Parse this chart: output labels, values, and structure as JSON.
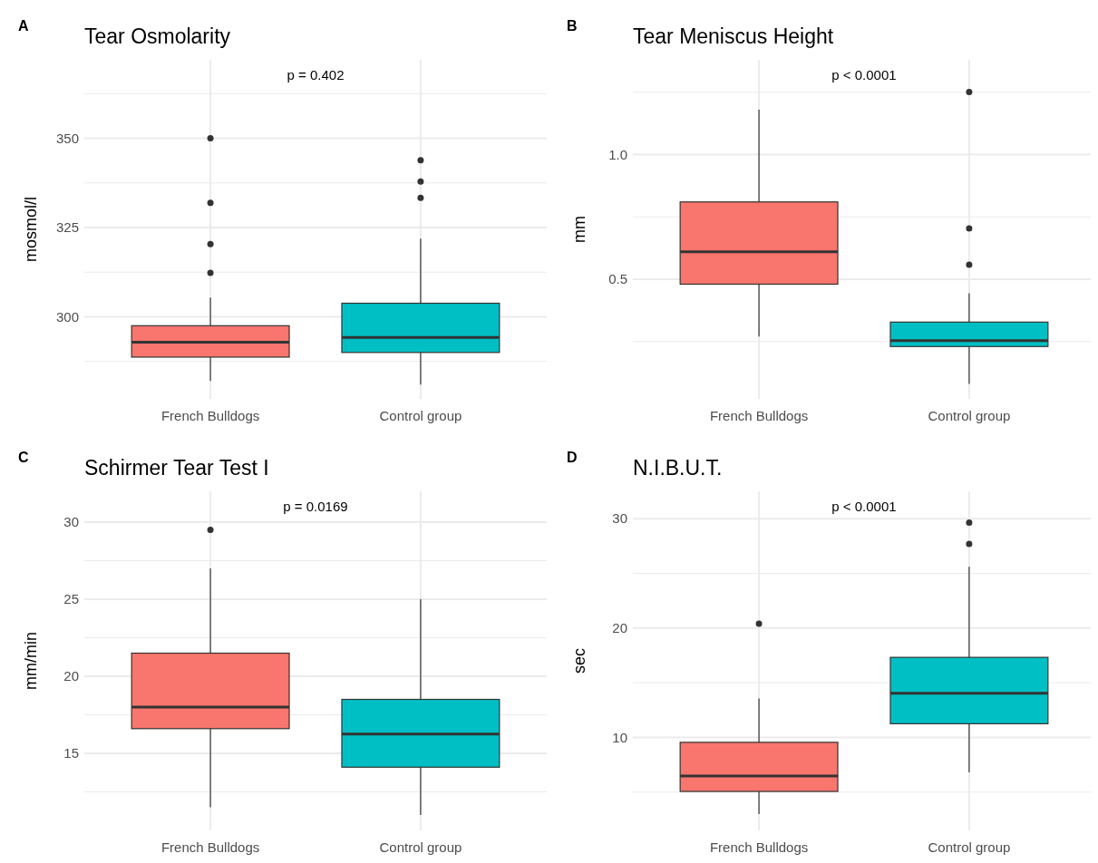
{
  "chart_data": [
    {
      "type": "box",
      "title": "Tear Osmolarity",
      "ylabel": "mosmol/l",
      "annotations": [
        "A",
        "p = 0.402"
      ],
      "categories": [
        "French Bulldogs",
        "Control group"
      ],
      "colors": [
        "#f8766d",
        "#00bfc4"
      ],
      "grid": true,
      "ylim": [
        277,
        372
      ],
      "yticks": [
        {
          "value": 287.5,
          "label": null
        },
        300,
        {
          "value": 312.5,
          "label": null
        },
        325,
        {
          "value": 337.5,
          "label": null
        },
        350,
        {
          "value": 362.5,
          "label": null
        }
      ],
      "boxes": [
        {
          "low": 282.0,
          "q1": 288.7,
          "median": 292.9,
          "q3": 297.5,
          "high": 305.4,
          "outliers": [
            312.3,
            320.4,
            331.9,
            350.0
          ]
        },
        {
          "low": 281.0,
          "q1": 290.0,
          "median": 294.2,
          "q3": 303.8,
          "high": 321.9,
          "outliers": [
            333.3,
            337.9,
            343.9
          ]
        }
      ]
    },
    {
      "type": "box",
      "title": "Tear Meniscus Height",
      "ylabel": "mm",
      "annotations": [
        "B",
        "p < 0.0001"
      ],
      "categories": [
        "French Bulldogs",
        "Control group"
      ],
      "colors": [
        "#f8766d",
        "#00bfc4"
      ],
      "grid": true,
      "ylim": [
        0.02,
        1.38
      ],
      "yticks": [
        {
          "value": 0.25,
          "label": null
        },
        {
          "value": 0.5,
          "label": "0.5"
        },
        {
          "value": 0.75,
          "label": null
        },
        {
          "value": 1.0,
          "label": "1.0"
        },
        {
          "value": 1.25,
          "label": null
        }
      ],
      "boxes": [
        {
          "low": 0.27,
          "q1": 0.48,
          "median": 0.61,
          "q3": 0.81,
          "high": 1.18
        },
        {
          "low": 0.08,
          "q1": 0.23,
          "median": 0.254,
          "q3": 0.328,
          "high": 0.444,
          "outliers": [
            0.558,
            0.704,
            1.251
          ]
        }
      ]
    },
    {
      "type": "box",
      "title": "Schirmer Tear Test I",
      "ylabel": "mm/min",
      "annotations": [
        "C",
        "p = 0.0169"
      ],
      "categories": [
        "French Bulldogs",
        "Control group"
      ],
      "colors": [
        "#f8766d",
        "#00bfc4"
      ],
      "grid": true,
      "ylim": [
        10,
        32
      ],
      "yticks": [
        {
          "value": 12.5,
          "label": null
        },
        15,
        {
          "value": 17.5,
          "label": null
        },
        20,
        {
          "value": 22.5,
          "label": null
        },
        25,
        {
          "value": 27.5,
          "label": null
        },
        30
      ],
      "boxes": [
        {
          "low": 11.5,
          "q1": 16.6,
          "median": 18.0,
          "q3": 21.5,
          "high": 27.0,
          "outliers": [
            29.5
          ]
        },
        {
          "low": 11.0,
          "q1": 14.1,
          "median": 16.25,
          "q3": 18.5,
          "high": 25.0
        }
      ]
    },
    {
      "type": "box",
      "title": "N.I.B.U.T.",
      "ylabel": "sec",
      "annotations": [
        "D",
        "p < 0.0001"
      ],
      "categories": [
        "French Bulldogs",
        "Control group"
      ],
      "colors": [
        "#f8766d",
        "#00bfc4"
      ],
      "grid": true,
      "ylim": [
        1.5,
        32.5
      ],
      "yticks": [
        {
          "value": 5,
          "label": null
        },
        10,
        {
          "value": 15,
          "label": null
        },
        20,
        {
          "value": 25,
          "label": null
        },
        30
      ],
      "boxes": [
        {
          "low": 3.0,
          "q1": 5.06,
          "median": 6.47,
          "q3": 9.55,
          "high": 13.56,
          "outliers": [
            20.4
          ]
        },
        {
          "low": 6.8,
          "q1": 11.25,
          "median": 14.04,
          "q3": 17.32,
          "high": 25.6,
          "outliers": [
            27.7,
            29.65
          ]
        }
      ]
    }
  ]
}
